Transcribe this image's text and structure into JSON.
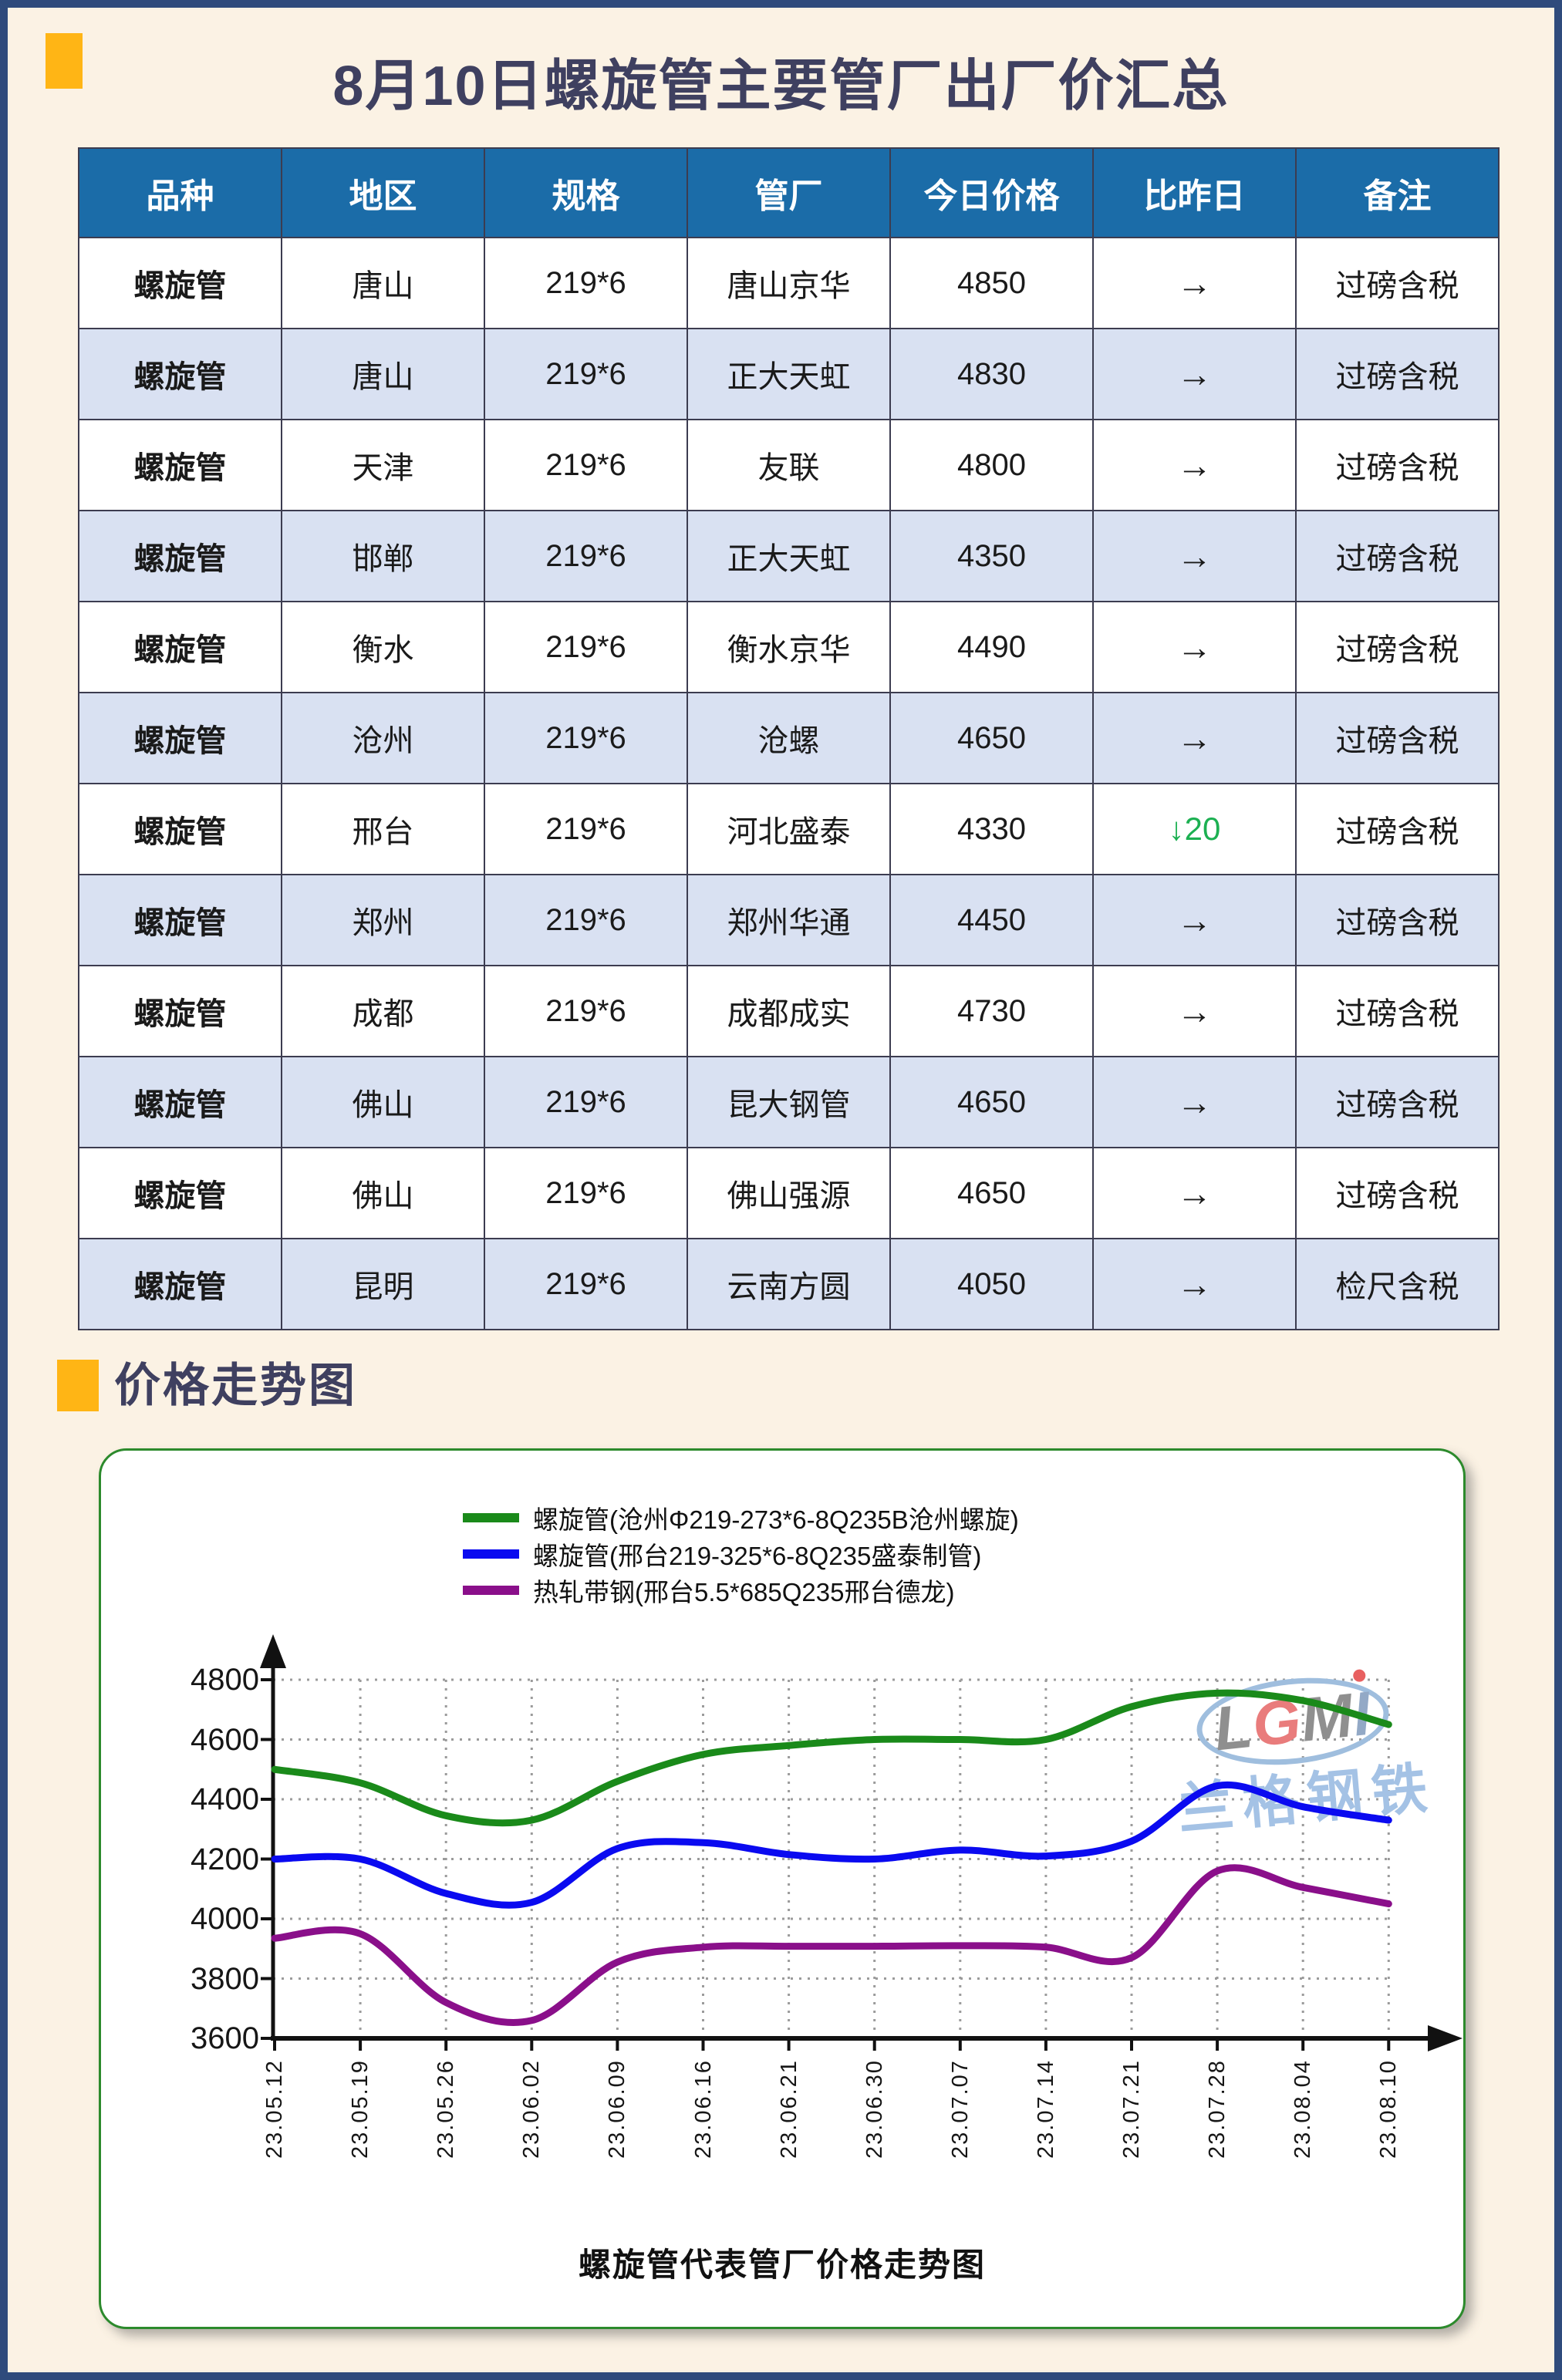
{
  "header": {
    "title": "8月10日螺旋管主要管厂出厂价汇总"
  },
  "table": {
    "headers": [
      "品种",
      "地区",
      "规格",
      "管厂",
      "今日价格",
      "比昨日",
      "备注"
    ],
    "rows": [
      [
        "螺旋管",
        "唐山",
        "219*6",
        "唐山京华",
        "4850",
        "→",
        "过磅含税"
      ],
      [
        "螺旋管",
        "唐山",
        "219*6",
        "正大天虹",
        "4830",
        "→",
        "过磅含税"
      ],
      [
        "螺旋管",
        "天津",
        "219*6",
        "友联",
        "4800",
        "→",
        "过磅含税"
      ],
      [
        "螺旋管",
        "邯郸",
        "219*6",
        "正大天虹",
        "4350",
        "→",
        "过磅含税"
      ],
      [
        "螺旋管",
        "衡水",
        "219*6",
        "衡水京华",
        "4490",
        "→",
        "过磅含税"
      ],
      [
        "螺旋管",
        "沧州",
        "219*6",
        "沧螺",
        "4650",
        "→",
        "过磅含税"
      ],
      [
        "螺旋管",
        "邢台",
        "219*6",
        "河北盛泰",
        "4330",
        "↓20",
        "过磅含税"
      ],
      [
        "螺旋管",
        "郑州",
        "219*6",
        "郑州华通",
        "4450",
        "→",
        "过磅含税"
      ],
      [
        "螺旋管",
        "成都",
        "219*6",
        "成都成实",
        "4730",
        "→",
        "过磅含税"
      ],
      [
        "螺旋管",
        "佛山",
        "219*6",
        "昆大钢管",
        "4650",
        "→",
        "过磅含税"
      ],
      [
        "螺旋管",
        "佛山",
        "219*6",
        "佛山强源",
        "4650",
        "→",
        "过磅含税"
      ],
      [
        "螺旋管",
        "昆明",
        "219*6",
        "云南方圆",
        "4050",
        "→",
        "检尺含税"
      ]
    ]
  },
  "section": {
    "title": "价格走势图"
  },
  "chart_data": {
    "type": "line",
    "title": "螺旋管代表管厂价格走势图",
    "x": [
      "23.05.12",
      "23.05.19",
      "23.05.26",
      "23.06.02",
      "23.06.09",
      "23.06.16",
      "23.06.21",
      "23.06.30",
      "23.07.07",
      "23.07.14",
      "23.07.21",
      "23.07.28",
      "23.08.04",
      "23.08.10"
    ],
    "series": [
      {
        "name": "螺旋管(沧州Φ219-273*6-8Q235B沧州螺旋)",
        "color": "#1A8A1A",
        "values": [
          4500,
          4455,
          4345,
          4330,
          4460,
          4550,
          4580,
          4600,
          4600,
          4600,
          4710,
          4755,
          4730,
          4650
        ]
      },
      {
        "name": "螺旋管(邢台219-325*6-8Q235盛泰制管)",
        "color": "#0A0AF0",
        "values": [
          4200,
          4200,
          4085,
          4055,
          4235,
          4255,
          4215,
          4200,
          4230,
          4210,
          4260,
          4445,
          4375,
          4330
        ]
      },
      {
        "name": "热轧带钢(邢台5.5*685Q235邢台德龙)",
        "color": "#8A0F8A",
        "values": [
          3935,
          3950,
          3720,
          3660,
          3855,
          3905,
          3908,
          3908,
          3910,
          3905,
          3870,
          4160,
          4105,
          4050
        ]
      }
    ],
    "ylim": [
      3600,
      4800
    ],
    "ytick_step": 200,
    "grid": true,
    "legend_position": "top-center",
    "watermark": {
      "logo": "LGMI",
      "text": "兰格钢铁"
    }
  },
  "colors": {
    "accent_orange": "#FFB515",
    "title_navy": "#3F4060",
    "page_border_navy": "#2F4B7C",
    "page_bg": "#FBF2E4",
    "table_header_bg": "#1B6CA8",
    "table_row_alt": "#D9E1F2",
    "price_down_green": "#1CB052",
    "chart_border_green": "#2C8A2C",
    "watermark_blue": "#9FBEDE"
  }
}
